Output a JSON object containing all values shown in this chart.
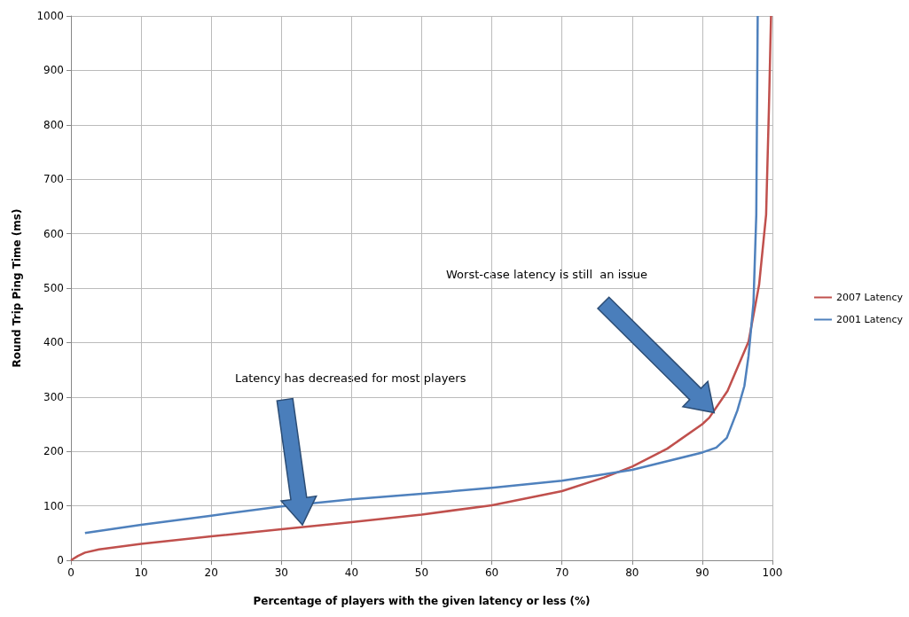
{
  "chart_data": {
    "type": "line",
    "xlabel": "Percentage of players with the given latency or less (%)",
    "ylabel": "Round Trip Ping Time (ms)",
    "series": [
      {
        "name": "2007 Latency",
        "color": "#c0504d",
        "x": [
          0,
          1,
          2,
          4,
          10,
          20,
          30,
          40,
          50,
          60,
          70,
          76,
          80,
          85,
          90,
          91,
          93.6,
          96.6,
          98.1,
          99.1,
          99.5,
          99.8
        ],
        "values": [
          0,
          8,
          14,
          20,
          30,
          44,
          57,
          70,
          84,
          101,
          127,
          152,
          172,
          205,
          250,
          262,
          311,
          402,
          506,
          635,
          830,
          1000
        ]
      },
      {
        "name": "2001 Latency",
        "color": "#4f81bd",
        "x": [
          2,
          10,
          20,
          30,
          40,
          50,
          60,
          70,
          75,
          80,
          85,
          90,
          92,
          93.5,
          95,
          96,
          96.6,
          97.3,
          97.7,
          97.9
        ],
        "values": [
          50,
          65,
          82,
          99,
          112,
          122,
          133,
          146,
          156,
          166,
          182,
          198,
          207,
          225,
          275,
          320,
          376,
          473,
          635,
          1000
        ]
      }
    ],
    "xlim": [
      0,
      100
    ],
    "xticks": [
      0,
      10,
      20,
      30,
      40,
      50,
      60,
      70,
      80,
      90,
      100
    ],
    "ylim": [
      0,
      1000
    ],
    "yticks": [
      0,
      100,
      200,
      300,
      400,
      500,
      600,
      700,
      800,
      900,
      1000
    ],
    "annotations": [
      "Latency has decreased for most players",
      "Worst-case latency is still  an issue"
    ],
    "grid": true,
    "legend": "right",
    "marker": "none",
    "line_style": "solid"
  }
}
